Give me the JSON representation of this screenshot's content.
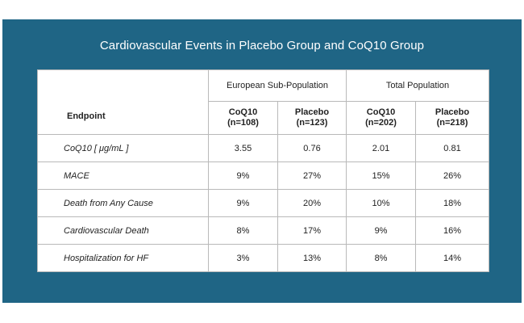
{
  "title": "Cardiovascular Events in Placebo Group and CoQ10 Group",
  "table": {
    "endpoint_header": "Endpoint",
    "groups": [
      "European Sub-Population",
      "Total Population"
    ],
    "subheaders": [
      {
        "name": "CoQ10",
        "n": "(n=108)"
      },
      {
        "name": "Placebo",
        "n": "(n=123)"
      },
      {
        "name": "CoQ10",
        "n": "(n=202)"
      },
      {
        "name": "Placebo",
        "n": "(n=218)"
      }
    ],
    "rows": [
      {
        "label": "CoQ10 [ μg/mL ]",
        "values": [
          "3.55",
          "0.76",
          "2.01",
          "0.81"
        ]
      },
      {
        "label": "MACE",
        "values": [
          "9%",
          "27%",
          "15%",
          "26%"
        ]
      },
      {
        "label": "Death from Any Cause",
        "values": [
          "9%",
          "20%",
          "10%",
          "18%"
        ]
      },
      {
        "label": "Cardiovascular Death",
        "values": [
          "8%",
          "17%",
          "9%",
          "16%"
        ]
      },
      {
        "label": "Hospitalization for HF",
        "values": [
          "3%",
          "13%",
          "8%",
          "14%"
        ]
      }
    ]
  }
}
